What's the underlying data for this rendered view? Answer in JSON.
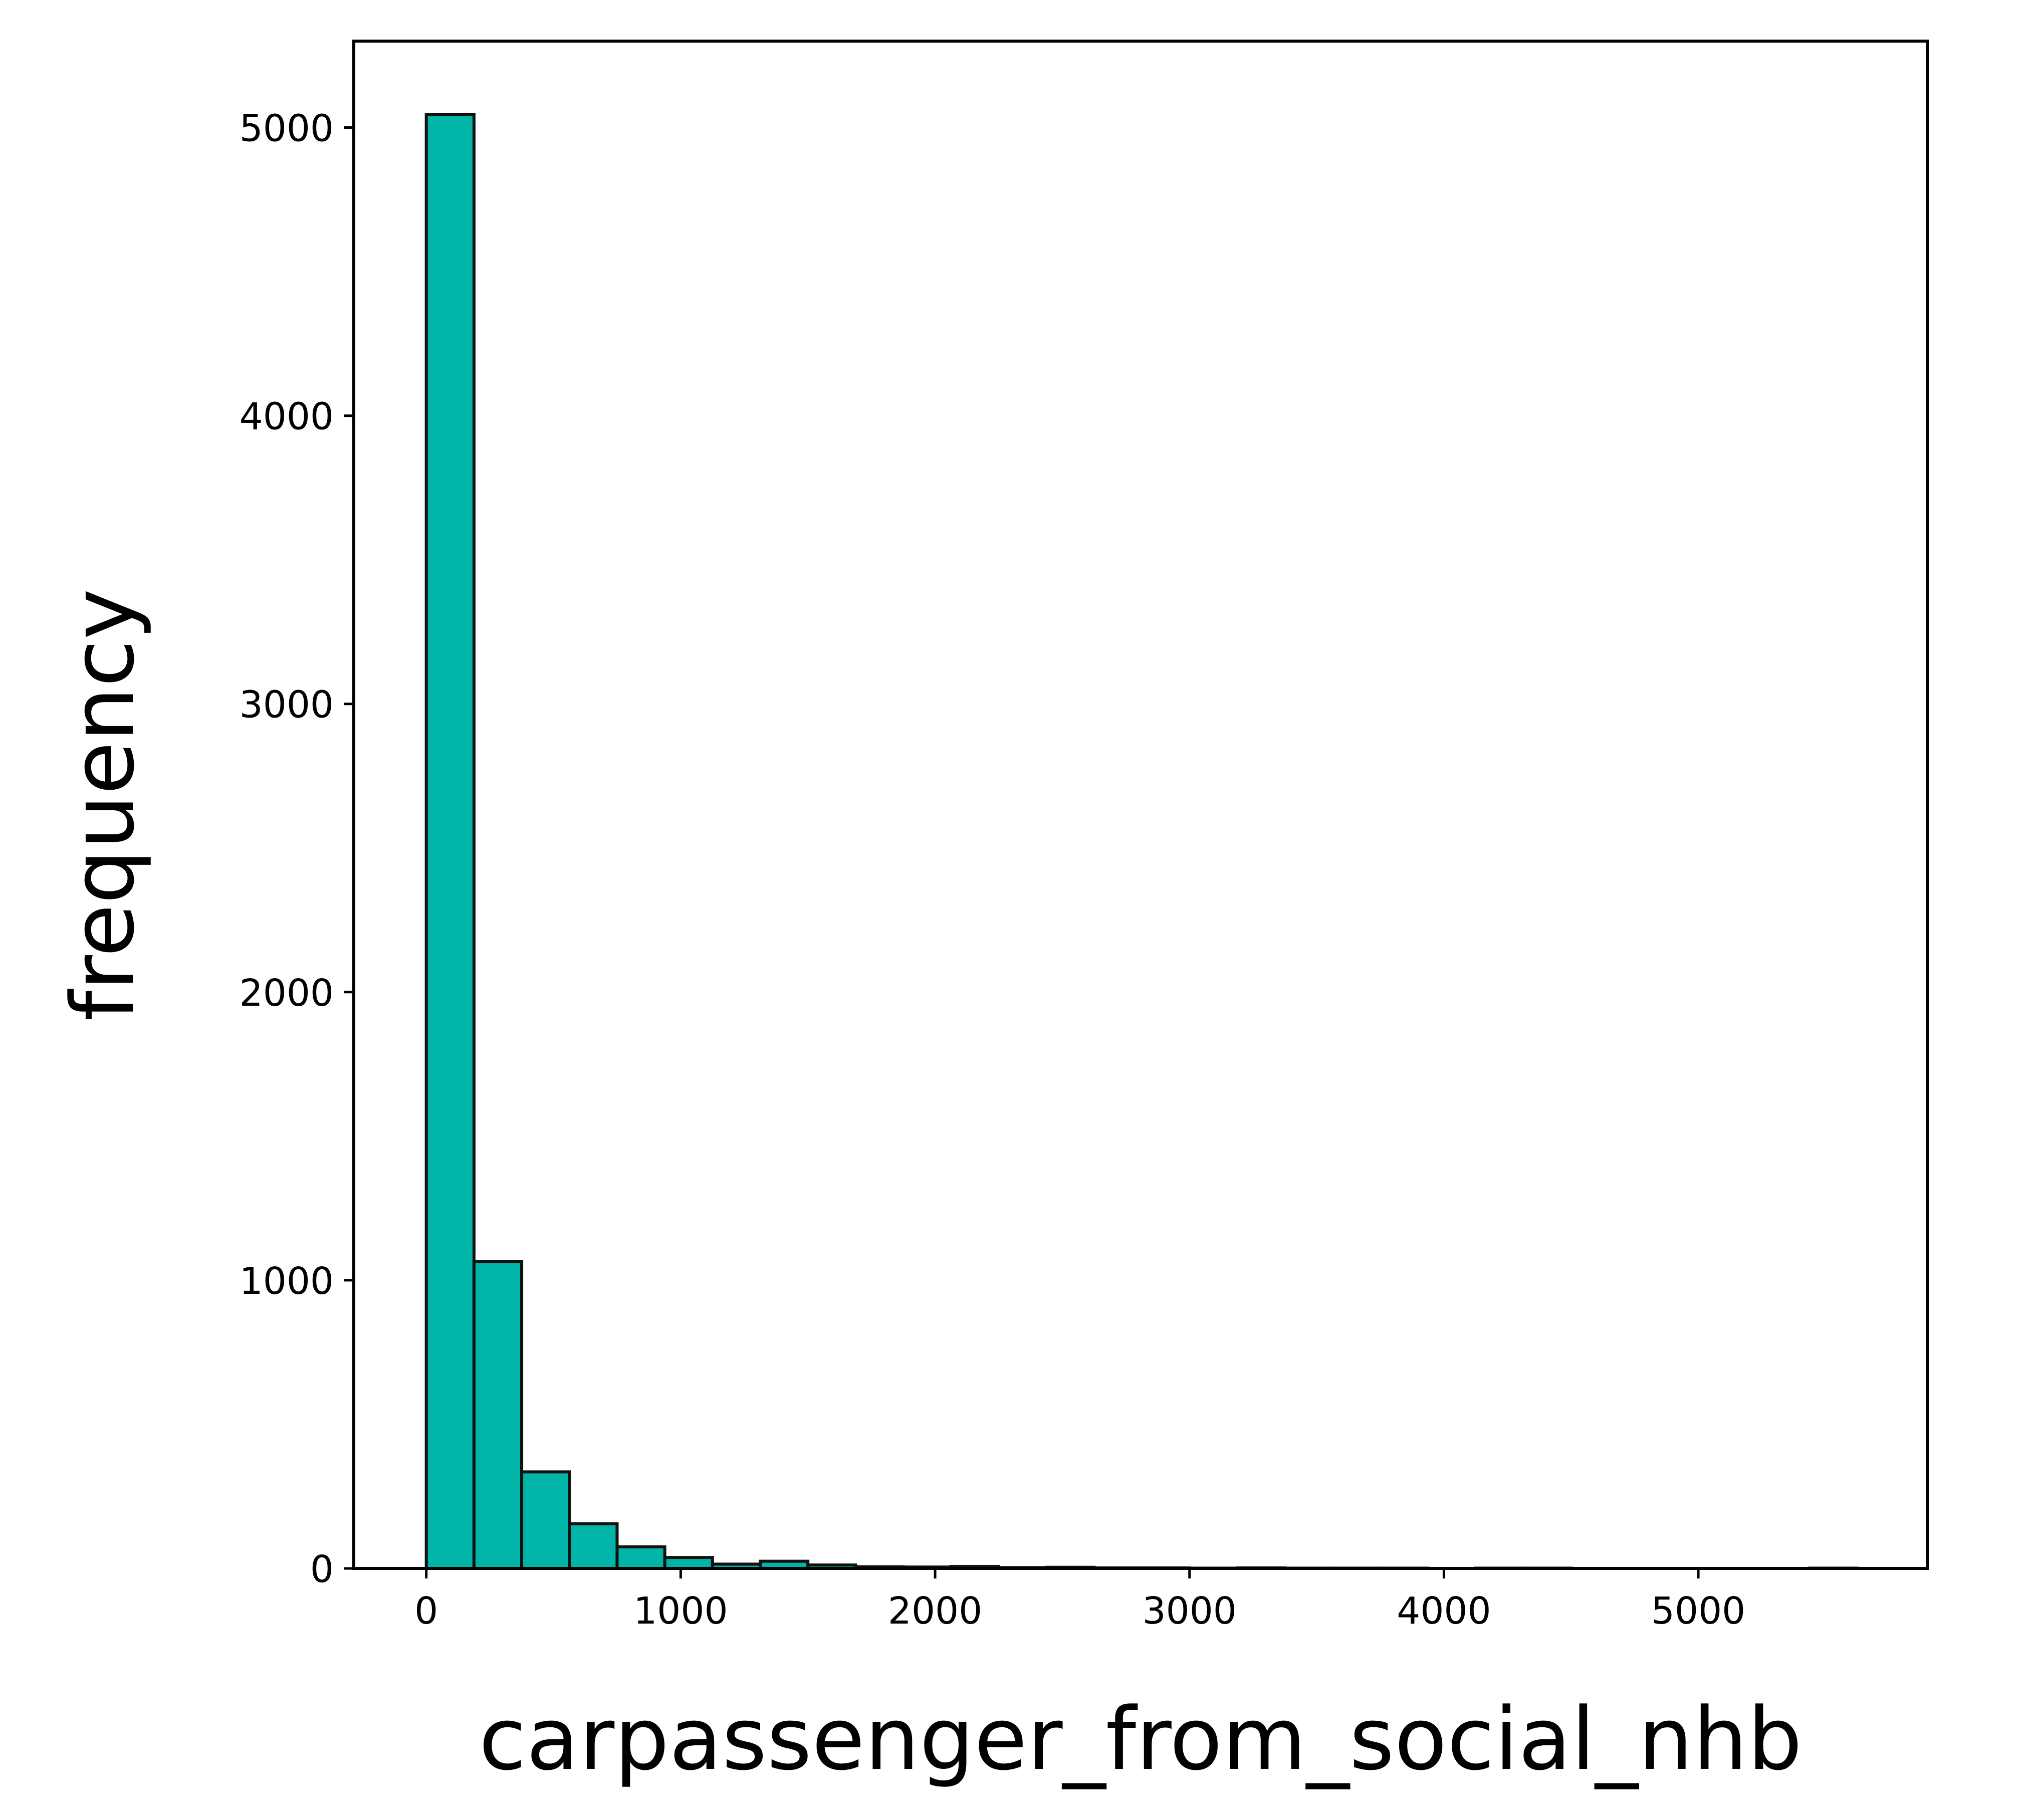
{
  "chart_data": {
    "type": "bar",
    "title": "",
    "xlabel": "carpassenger_from_social_nhb",
    "ylabel": "frequency",
    "xlim": [
      -285,
      5900
    ],
    "ylim": [
      0,
      5300
    ],
    "xticks": [
      0,
      1000,
      2000,
      3000,
      4000,
      5000
    ],
    "yticks": [
      0,
      1000,
      2000,
      3000,
      4000,
      5000
    ],
    "grid": false,
    "legend": "none",
    "bar_color": "#00b5a7",
    "edge_color": "#111111",
    "bin_width": 187.5,
    "bins": [
      {
        "x0": 0,
        "x1": 187.5,
        "count": 5045
      },
      {
        "x0": 187.5,
        "x1": 375,
        "count": 1065
      },
      {
        "x0": 375,
        "x1": 562.5,
        "count": 335
      },
      {
        "x0": 562.5,
        "x1": 750,
        "count": 155
      },
      {
        "x0": 750,
        "x1": 937.5,
        "count": 75
      },
      {
        "x0": 937.5,
        "x1": 1125,
        "count": 38
      },
      {
        "x0": 1125,
        "x1": 1312.5,
        "count": 15
      },
      {
        "x0": 1312.5,
        "x1": 1500,
        "count": 25
      },
      {
        "x0": 1500,
        "x1": 1687.5,
        "count": 12
      },
      {
        "x0": 1687.5,
        "x1": 1875,
        "count": 6
      },
      {
        "x0": 1875,
        "x1": 2062.5,
        "count": 5
      },
      {
        "x0": 2062.5,
        "x1": 2250,
        "count": 7
      },
      {
        "x0": 2250,
        "x1": 2437.5,
        "count": 3
      },
      {
        "x0": 2437.5,
        "x1": 2625,
        "count": 4
      },
      {
        "x0": 2625,
        "x1": 2812.5,
        "count": 2
      },
      {
        "x0": 2812.5,
        "x1": 3000,
        "count": 2
      },
      {
        "x0": 3000,
        "x1": 3187.5,
        "count": 1
      },
      {
        "x0": 3187.5,
        "x1": 3375,
        "count": 2
      },
      {
        "x0": 3375,
        "x1": 3562.5,
        "count": 1
      },
      {
        "x0": 3562.5,
        "x1": 3750,
        "count": 1
      },
      {
        "x0": 3750,
        "x1": 3937.5,
        "count": 1
      },
      {
        "x0": 3937.5,
        "x1": 4125,
        "count": 0
      },
      {
        "x0": 4125,
        "x1": 4312.5,
        "count": 1
      },
      {
        "x0": 4312.5,
        "x1": 4500,
        "count": 1
      },
      {
        "x0": 4500,
        "x1": 4687.5,
        "count": 0
      },
      {
        "x0": 4687.5,
        "x1": 4875,
        "count": 0
      },
      {
        "x0": 4875,
        "x1": 5062.5,
        "count": 0
      },
      {
        "x0": 5062.5,
        "x1": 5250,
        "count": 0
      },
      {
        "x0": 5250,
        "x1": 5437.5,
        "count": 0
      },
      {
        "x0": 5437.5,
        "x1": 5625,
        "count": 1
      }
    ]
  }
}
